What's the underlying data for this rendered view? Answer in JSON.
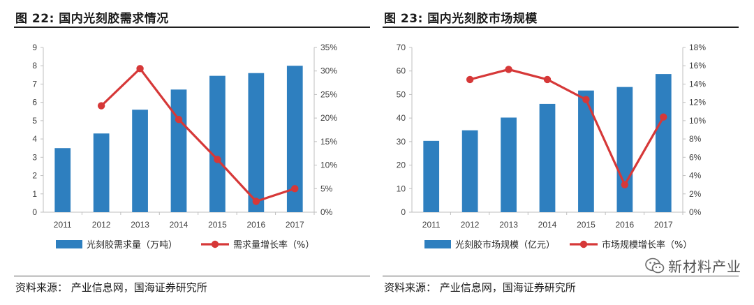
{
  "left": {
    "figure_title": "图 22:  国内光刻胶需求情况",
    "source": "资料来源：  产业信息网，国海证券研究所"
  },
  "right": {
    "figure_title": "图 23:  国内光刻胶市场规模",
    "source": "资料来源：  产业信息网，国海证券研究所"
  },
  "watermark": {
    "text": "新材料产业",
    "icon": "wechat-icon"
  },
  "colors": {
    "bar": "#2e7fbf",
    "line": "#d63838",
    "axis": "#bfbfbf",
    "text": "#404040"
  },
  "chart_data": [
    {
      "type": "bar+line",
      "title": "国内光刻胶需求情况",
      "categories": [
        "2011",
        "2012",
        "2013",
        "2014",
        "2015",
        "2016",
        "2017"
      ],
      "series": [
        {
          "name": "光刻胶需求量（万吨）",
          "type": "bar",
          "axis": "left",
          "values": [
            3.5,
            4.3,
            5.6,
            6.7,
            7.45,
            7.6,
            8.0
          ]
        },
        {
          "name": "需求量增长率（%）",
          "type": "line",
          "axis": "right",
          "values": [
            null,
            22.6,
            30.5,
            19.7,
            11.2,
            2.3,
            5.0
          ]
        }
      ],
      "y_left": {
        "min": 0,
        "max": 9,
        "ticks": [
          "0",
          "1",
          "2",
          "3",
          "4",
          "5",
          "6",
          "7",
          "8",
          "9"
        ]
      },
      "y_right": {
        "min": 0,
        "max": 35,
        "ticks": [
          "0%",
          "5%",
          "10%",
          "15%",
          "20%",
          "25%",
          "30%",
          "35%"
        ]
      },
      "legend_placement": "bottom"
    },
    {
      "type": "bar+line",
      "title": "国内光刻胶市场规模",
      "categories": [
        "2011",
        "2012",
        "2013",
        "2014",
        "2015",
        "2016",
        "2017"
      ],
      "series": [
        {
          "name": "光刻胶市场规模（亿元）",
          "type": "bar",
          "axis": "left",
          "values": [
            30.3,
            34.8,
            40.2,
            46.0,
            51.7,
            53.2,
            58.7
          ]
        },
        {
          "name": "市场规模增长率（%）",
          "type": "line",
          "axis": "right",
          "values": [
            null,
            14.5,
            15.6,
            14.5,
            12.3,
            3.0,
            10.4
          ]
        }
      ],
      "y_left": {
        "min": 0,
        "max": 70,
        "ticks": [
          "0",
          "10",
          "20",
          "30",
          "40",
          "50",
          "60",
          "70"
        ]
      },
      "y_right": {
        "min": 0,
        "max": 18,
        "ticks": [
          "0%",
          "2%",
          "4%",
          "6%",
          "8%",
          "10%",
          "12%",
          "14%",
          "16%",
          "18%"
        ]
      },
      "legend_placement": "bottom"
    }
  ]
}
